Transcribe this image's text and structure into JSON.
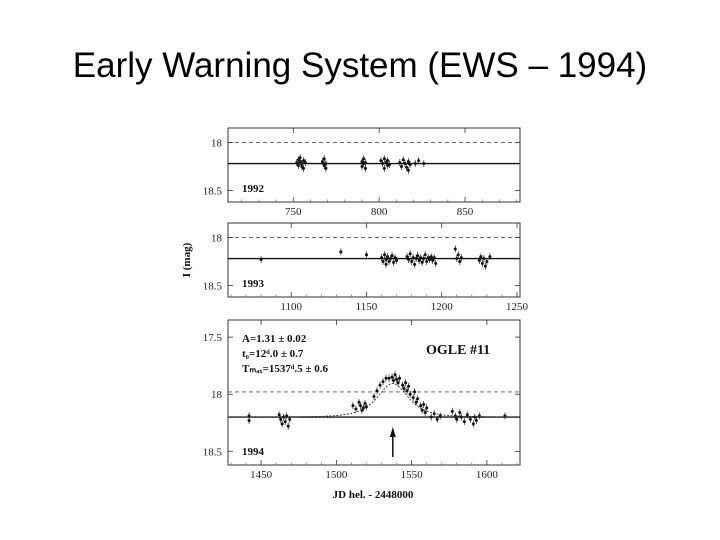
{
  "slide": {
    "title": "Early Warning System (EWS – 1994)"
  },
  "chart_data": {
    "type": "scatter",
    "ylabel": "I (mag)",
    "xlabel": "JD hel. - 2448000",
    "y_axis_inverted": true,
    "panels": [
      {
        "season": "1992",
        "xlim": [
          712,
          882
        ],
        "ylim": [
          17.85,
          18.62
        ],
        "xticks": [
          750,
          800,
          850
        ],
        "yticks": [
          18,
          18.5
        ],
        "baseline": 18.22,
        "dashed_level": 18.0,
        "points": [
          [
            752,
            18.21
          ],
          [
            753,
            18.18
          ],
          [
            753,
            18.24
          ],
          [
            754,
            18.2
          ],
          [
            754,
            18.16
          ],
          [
            755,
            18.22
          ],
          [
            755,
            18.25
          ],
          [
            756,
            18.19
          ],
          [
            756,
            18.27
          ],
          [
            757,
            18.21
          ],
          [
            767,
            18.2
          ],
          [
            768,
            18.24
          ],
          [
            768,
            18.17
          ],
          [
            769,
            18.22
          ],
          [
            769,
            18.27
          ],
          [
            790,
            18.2
          ],
          [
            790,
            18.25
          ],
          [
            791,
            18.17
          ],
          [
            791,
            18.22
          ],
          [
            792,
            18.21
          ],
          [
            792,
            18.27
          ],
          [
            801,
            18.19
          ],
          [
            802,
            18.22
          ],
          [
            803,
            18.27
          ],
          [
            803,
            18.17
          ],
          [
            804,
            18.21
          ],
          [
            805,
            18.24
          ],
          [
            805,
            18.19
          ],
          [
            806,
            18.23
          ],
          [
            812,
            18.21
          ],
          [
            813,
            18.25
          ],
          [
            814,
            18.18
          ],
          [
            815,
            18.22
          ],
          [
            816,
            18.26
          ],
          [
            817,
            18.2
          ],
          [
            817,
            18.29
          ],
          [
            818,
            18.23
          ],
          [
            821,
            18.22
          ],
          [
            823,
            18.19
          ],
          [
            826,
            18.22
          ]
        ]
      },
      {
        "season": "1993",
        "xlim": [
          1058,
          1252
        ],
        "ylim": [
          17.85,
          18.62
        ],
        "xticks": [
          1100,
          1150,
          1200,
          1250
        ],
        "yticks": [
          18,
          18.5
        ],
        "baseline": 18.22,
        "dashed_level": 18.0,
        "points": [
          [
            1080,
            18.23
          ],
          [
            1133,
            18.15
          ],
          [
            1150,
            18.18
          ],
          [
            1160,
            18.21
          ],
          [
            1161,
            18.25
          ],
          [
            1162,
            18.18
          ],
          [
            1163,
            18.23
          ],
          [
            1163,
            18.28
          ],
          [
            1164,
            18.2
          ],
          [
            1165,
            18.25
          ],
          [
            1166,
            18.22
          ],
          [
            1167,
            18.19
          ],
          [
            1168,
            18.26
          ],
          [
            1169,
            18.21
          ],
          [
            1170,
            18.24
          ],
          [
            1177,
            18.2
          ],
          [
            1178,
            18.23
          ],
          [
            1179,
            18.17
          ],
          [
            1180,
            18.25
          ],
          [
            1181,
            18.21
          ],
          [
            1182,
            18.28
          ],
          [
            1183,
            18.22
          ],
          [
            1184,
            18.19
          ],
          [
            1185,
            18.24
          ],
          [
            1186,
            18.21
          ],
          [
            1187,
            18.26
          ],
          [
            1188,
            18.22
          ],
          [
            1189,
            18.18
          ],
          [
            1190,
            18.25
          ],
          [
            1191,
            18.21
          ],
          [
            1192,
            18.23
          ],
          [
            1193,
            18.2
          ],
          [
            1194,
            18.24
          ],
          [
            1195,
            18.21
          ],
          [
            1196,
            18.27
          ],
          [
            1209,
            18.12
          ],
          [
            1210,
            18.22
          ],
          [
            1211,
            18.18
          ],
          [
            1212,
            18.25
          ],
          [
            1213,
            18.21
          ],
          [
            1225,
            18.24
          ],
          [
            1226,
            18.2
          ],
          [
            1227,
            18.27
          ],
          [
            1228,
            18.22
          ],
          [
            1229,
            18.3
          ],
          [
            1230,
            18.25
          ],
          [
            1232,
            18.2
          ]
        ]
      },
      {
        "season": "1994",
        "xlim": [
          1428,
          1622
        ],
        "ylim": [
          17.35,
          18.62
        ],
        "xticks": [
          1450,
          1500,
          1550,
          1600
        ],
        "yticks": [
          17.5,
          18,
          18.5
        ],
        "baseline": 18.2,
        "dashed_level": 17.98,
        "annotations": [
          "A=1.31 ± 0.02",
          "t₀=12ᵈ.0 ± 0.7",
          "Tₘₐₓ=1537ᵈ.5 ± 0.6"
        ],
        "label": "OGLE #11",
        "t_max": 1537.5,
        "points": [
          [
            1442,
            18.19
          ],
          [
            1442,
            18.23
          ],
          [
            1462,
            18.18
          ],
          [
            1463,
            18.22
          ],
          [
            1464,
            18.26
          ],
          [
            1465,
            18.2
          ],
          [
            1466,
            18.24
          ],
          [
            1467,
            18.19
          ],
          [
            1468,
            18.28
          ],
          [
            1469,
            18.22
          ],
          [
            1511,
            18.1
          ],
          [
            1513,
            18.13
          ],
          [
            1515,
            18.07
          ],
          [
            1516,
            18.1
          ],
          [
            1517,
            18.14
          ],
          [
            1518,
            18.12
          ],
          [
            1519,
            18.08
          ],
          [
            1520,
            18.11
          ],
          [
            1525,
            18.02
          ],
          [
            1527,
            17.97
          ],
          [
            1529,
            17.92
          ],
          [
            1531,
            17.89
          ],
          [
            1533,
            17.86
          ],
          [
            1535,
            17.86
          ],
          [
            1537,
            17.85
          ],
          [
            1538,
            17.88
          ],
          [
            1539,
            17.83
          ],
          [
            1540,
            17.87
          ],
          [
            1541,
            17.9
          ],
          [
            1542,
            17.86
          ],
          [
            1544,
            17.92
          ],
          [
            1545,
            17.95
          ],
          [
            1546,
            17.9
          ],
          [
            1547,
            17.97
          ],
          [
            1548,
            17.93
          ],
          [
            1549,
            18.0
          ],
          [
            1551,
            18.03
          ],
          [
            1552,
            17.98
          ],
          [
            1553,
            18.07
          ],
          [
            1554,
            18.04
          ],
          [
            1556,
            18.1
          ],
          [
            1557,
            18.14
          ],
          [
            1558,
            18.09
          ],
          [
            1559,
            18.16
          ],
          [
            1560,
            18.12
          ],
          [
            1563,
            18.2
          ],
          [
            1565,
            18.17
          ],
          [
            1567,
            18.22
          ],
          [
            1569,
            18.19
          ],
          [
            1577,
            18.15
          ],
          [
            1579,
            18.19
          ],
          [
            1580,
            18.22
          ],
          [
            1582,
            18.16
          ],
          [
            1583,
            18.2
          ],
          [
            1585,
            18.24
          ],
          [
            1587,
            18.18
          ],
          [
            1589,
            18.22
          ],
          [
            1591,
            18.26
          ],
          [
            1592,
            18.2
          ],
          [
            1593,
            18.23
          ],
          [
            1595,
            18.19
          ],
          [
            1612,
            18.19
          ]
        ]
      }
    ]
  }
}
